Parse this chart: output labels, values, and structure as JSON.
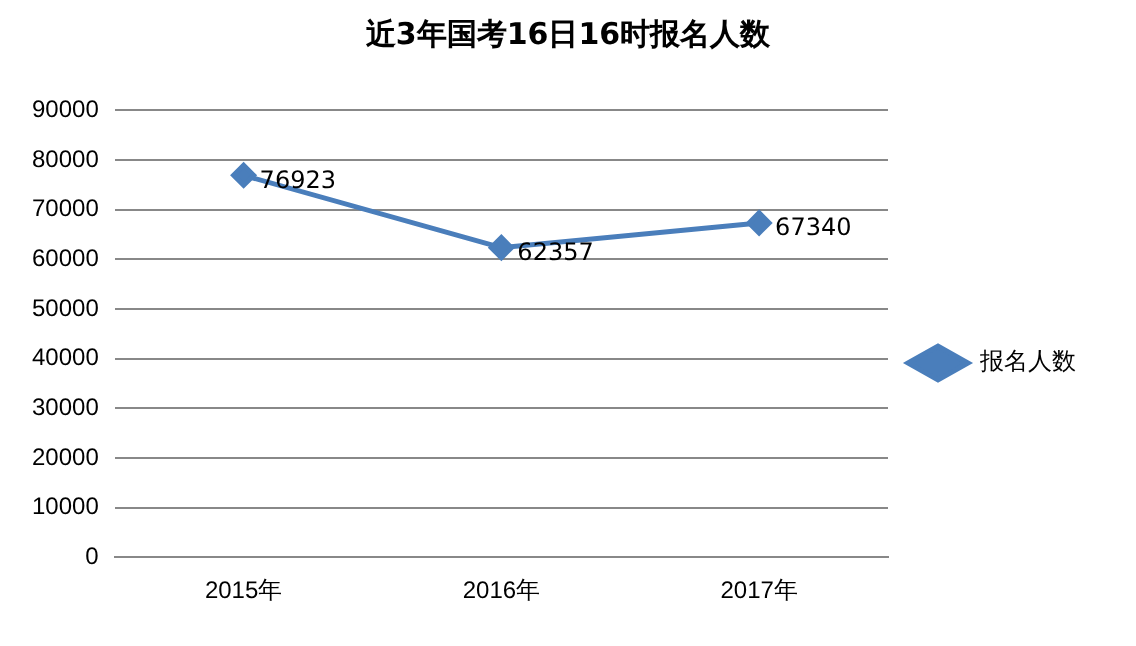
{
  "chart_data": {
    "type": "line",
    "title": "近3年国考16日16时报名人数",
    "categories": [
      "2015年",
      "2016年",
      "2017年"
    ],
    "series": [
      {
        "name": "报名人数",
        "color": "#4a7ebb",
        "values": [
          76923,
          62357,
          67340
        ]
      }
    ],
    "ylim": [
      0,
      90000
    ],
    "yticks": [
      0,
      10000,
      20000,
      30000,
      40000,
      50000,
      60000,
      70000,
      80000,
      90000
    ],
    "grid": "y",
    "legend": "right",
    "marker": "diamond",
    "line_style": "solid",
    "data_labels": true
  }
}
